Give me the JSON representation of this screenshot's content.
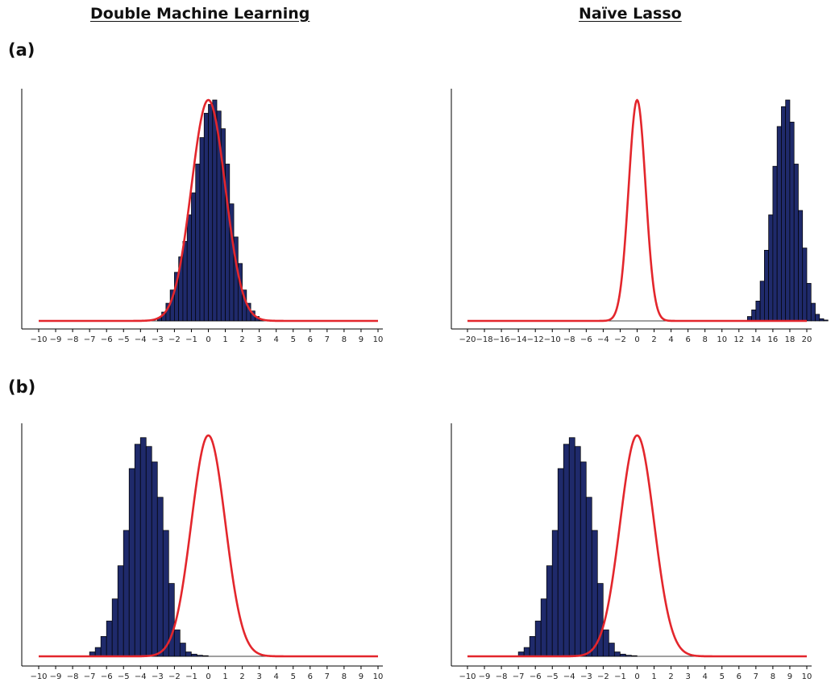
{
  "columns": {
    "left_title": "Double Machine Learning",
    "right_title": "Naïve Lasso"
  },
  "rows": {
    "a_label": "(a)",
    "b_label": "(b)"
  },
  "colors": {
    "bars": "#1f2a6b",
    "curve": "#e3262c"
  },
  "chart_data": [
    {
      "type": "bar",
      "overlay": "normal density curve",
      "xlim": [
        -10,
        10
      ],
      "ticks": [
        -10,
        -9,
        -8,
        -7,
        -6,
        -5,
        -4,
        -3,
        -2,
        -1,
        0,
        1,
        2,
        3,
        4,
        5,
        6,
        7,
        8,
        9,
        10
      ],
      "curve": {
        "mean": 0,
        "sd": 1
      },
      "bin_width": 0.25,
      "bin_start": -3.0,
      "values": [
        0.015,
        0.04,
        0.08,
        0.14,
        0.22,
        0.29,
        0.36,
        0.48,
        0.58,
        0.71,
        0.83,
        0.94,
        0.98,
        1.0,
        0.95,
        0.87,
        0.71,
        0.53,
        0.38,
        0.26,
        0.14,
        0.08,
        0.045,
        0.02,
        0.008
      ]
    },
    {
      "type": "bar",
      "overlay": "normal density curve",
      "xlim": [
        -20,
        20
      ],
      "ticks": [
        -20,
        -18,
        -16,
        -14,
        -12,
        -10,
        -8,
        -6,
        -4,
        -2,
        0,
        2,
        4,
        6,
        8,
        10,
        12,
        14,
        16,
        18,
        20
      ],
      "curve": {
        "mean": 0,
        "sd": 1
      },
      "bin_width": 0.5,
      "bin_start": 13.0,
      "values": [
        0.02,
        0.05,
        0.09,
        0.18,
        0.32,
        0.48,
        0.7,
        0.88,
        0.97,
        1.0,
        0.9,
        0.71,
        0.5,
        0.33,
        0.17,
        0.08,
        0.03,
        0.01,
        0.004
      ]
    },
    {
      "type": "bar",
      "overlay": "normal density curve",
      "xlim": [
        -10,
        10
      ],
      "ticks": [
        -10,
        -9,
        -8,
        -7,
        -6,
        -5,
        -4,
        -3,
        -2,
        -1,
        0,
        1,
        2,
        3,
        4,
        5,
        6,
        7,
        8,
        9,
        10
      ],
      "curve": {
        "mean": 0,
        "sd": 1
      },
      "bin_width": 0.333,
      "bin_start": -7.0,
      "values": [
        0.02,
        0.04,
        0.09,
        0.16,
        0.26,
        0.41,
        0.57,
        0.85,
        0.96,
        0.99,
        0.95,
        0.88,
        0.72,
        0.57,
        0.33,
        0.12,
        0.06,
        0.02,
        0.01,
        0.005,
        0.003
      ]
    },
    {
      "type": "bar",
      "overlay": "normal density curve",
      "xlim": [
        -10,
        10
      ],
      "ticks": [
        -10,
        -9,
        -8,
        -7,
        -6,
        -5,
        -4,
        -3,
        -2,
        -1,
        0,
        1,
        2,
        3,
        4,
        5,
        6,
        7,
        8,
        9,
        10
      ],
      "curve": {
        "mean": 0,
        "sd": 1
      },
      "bin_width": 0.333,
      "bin_start": -7.0,
      "values": [
        0.02,
        0.04,
        0.09,
        0.16,
        0.26,
        0.41,
        0.57,
        0.85,
        0.96,
        0.99,
        0.95,
        0.88,
        0.72,
        0.57,
        0.33,
        0.12,
        0.06,
        0.02,
        0.01,
        0.005,
        0.003
      ]
    }
  ]
}
